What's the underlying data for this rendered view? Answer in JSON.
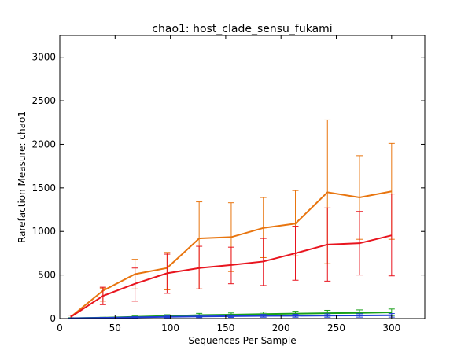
{
  "chart_data": {
    "type": "line",
    "title": "chao1: host_clade_sensu_fukami",
    "xlabel": "Sequences Per Sample",
    "ylabel": "Rarefaction Measure: chao1",
    "xlim": [
      0,
      330
    ],
    "ylim": [
      0,
      3250
    ],
    "x_ticks": [
      0,
      50,
      100,
      150,
      200,
      250,
      300
    ],
    "y_ticks": [
      0,
      500,
      1000,
      1500,
      2000,
      2500,
      3000
    ],
    "grid": false,
    "legend": "none",
    "x": [
      10,
      39,
      68,
      97,
      126,
      155,
      184,
      213,
      242,
      271,
      300
    ],
    "series": [
      {
        "color": "#e8750f",
        "values": [
          20,
          320,
          510,
          580,
          920,
          935,
          1040,
          1090,
          1450,
          1390,
          1460
        ],
        "err_low": [
          0,
          200,
          340,
          330,
          340,
          540,
          700,
          720,
          630,
          910,
          910
        ],
        "err_high": [
          40,
          350,
          680,
          760,
          1340,
          1330,
          1390,
          1470,
          2280,
          1870,
          2010
        ]
      },
      {
        "color": "#e8141e",
        "values": [
          20,
          260,
          400,
          520,
          580,
          615,
          655,
          750,
          850,
          865,
          955
        ],
        "err_low": [
          0,
          160,
          200,
          290,
          340,
          400,
          380,
          440,
          430,
          500,
          490
        ],
        "err_high": [
          40,
          360,
          580,
          740,
          830,
          820,
          920,
          1060,
          1270,
          1230,
          1430
        ]
      },
      {
        "color": "#19a019",
        "values": [
          5,
          10,
          20,
          30,
          40,
          45,
          52,
          57,
          62,
          66,
          72
        ],
        "err_low": [
          0,
          5,
          10,
          15,
          20,
          25,
          30,
          30,
          30,
          35,
          35
        ],
        "err_high": [
          10,
          15,
          30,
          45,
          60,
          65,
          75,
          85,
          95,
          100,
          110
        ]
      },
      {
        "color": "#1f3bd6",
        "values": [
          3,
          8,
          15,
          20,
          25,
          28,
          32,
          33,
          35,
          36,
          38
        ],
        "err_low": [
          0,
          4,
          8,
          10,
          12,
          14,
          16,
          16,
          16,
          17,
          17
        ],
        "err_high": [
          6,
          12,
          22,
          30,
          38,
          42,
          48,
          50,
          54,
          55,
          58
        ]
      }
    ]
  }
}
